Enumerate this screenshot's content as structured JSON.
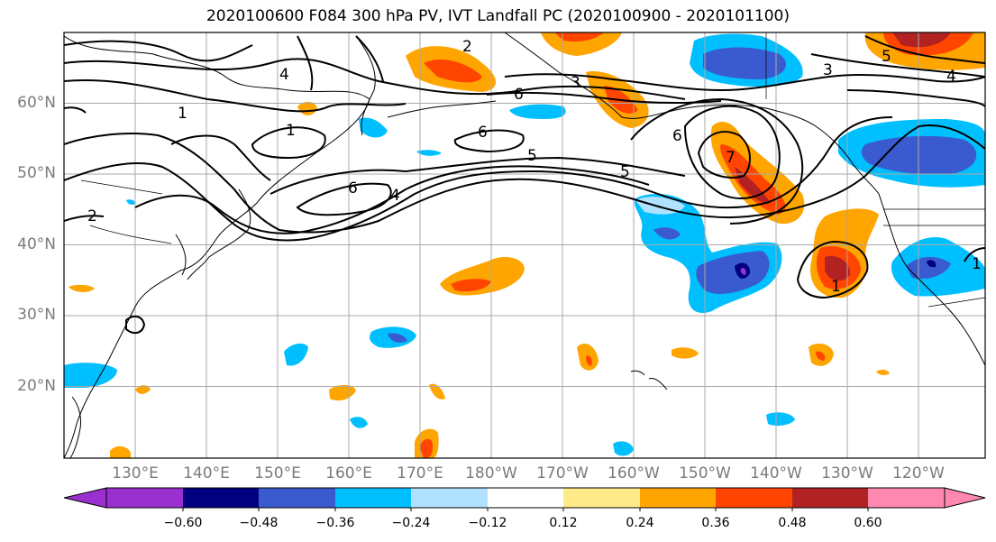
{
  "title": "2020100600 F084 300 hPa PV, IVT Landfall PC (2020100900 - 2020101100)",
  "lat_labels": [
    "60°N",
    "50°N",
    "40°N",
    "30°N",
    "20°N"
  ],
  "lon_labels": [
    "130°E",
    "140°E",
    "150°E",
    "160°E",
    "170°E",
    "180°W",
    "170°W",
    "160°W",
    "150°W",
    "140°W",
    "130°W",
    "120°W"
  ],
  "contour_labels": [
    "1",
    "1",
    "2",
    "2",
    "3",
    "3",
    "4",
    "4",
    "4",
    "5",
    "5",
    "5",
    "6",
    "6",
    "6",
    "6",
    "7",
    "1",
    "1"
  ],
  "colorbar": {
    "ticks": [
      "−0.60",
      "−0.48",
      "−0.36",
      "−0.24",
      "−0.12",
      "0.12",
      "0.24",
      "0.36",
      "0.48",
      "0.60"
    ],
    "colors": [
      "#9b30d0",
      "#000080",
      "#3a5bcf",
      "#00bfff",
      "#b0e2ff",
      "#ffffff",
      "#ffea8a",
      "#ffa500",
      "#ff4500",
      "#b22222",
      "#ff88b0"
    ]
  }
}
